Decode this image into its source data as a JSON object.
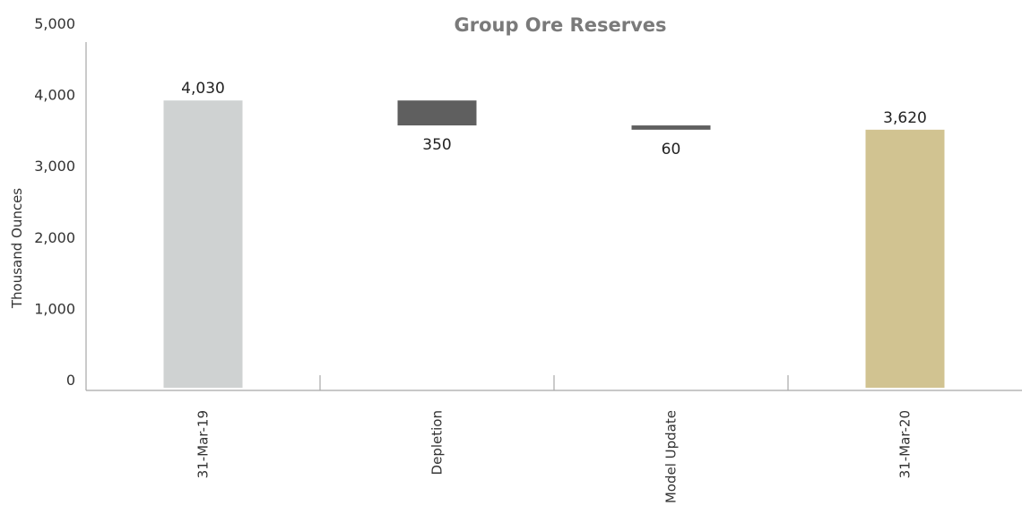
{
  "chart_data": {
    "type": "bar",
    "subtype": "waterfall",
    "title": "Group Ore Reserves",
    "xlabel": "",
    "ylabel": "Thousand Ounces",
    "ylim": [
      0,
      5000
    ],
    "yticks": [
      0,
      1000,
      2000,
      3000,
      4000,
      5000
    ],
    "ytick_labels": [
      "0",
      "1,000",
      "2,000",
      "3,000",
      "4,000",
      "5,000"
    ],
    "grid": false,
    "categories": [
      "31-Mar-19",
      "Depletion",
      "Model Update",
      "31-Mar-20"
    ],
    "bars": [
      {
        "category": "31-Mar-19",
        "kind": "total",
        "start": 0,
        "end": 4030,
        "label": "4,030",
        "color": "#cfd2d2"
      },
      {
        "category": "Depletion",
        "kind": "decrease",
        "start": 4030,
        "end": 3680,
        "label": "350",
        "color": "#5f5f5f"
      },
      {
        "category": "Model Update",
        "kind": "decrease",
        "start": 3680,
        "end": 3620,
        "label": "60",
        "color": "#5f5f5f"
      },
      {
        "category": "31-Mar-20",
        "kind": "total",
        "start": 0,
        "end": 3620,
        "label": "3,620",
        "color": "#d1c391"
      }
    ]
  }
}
